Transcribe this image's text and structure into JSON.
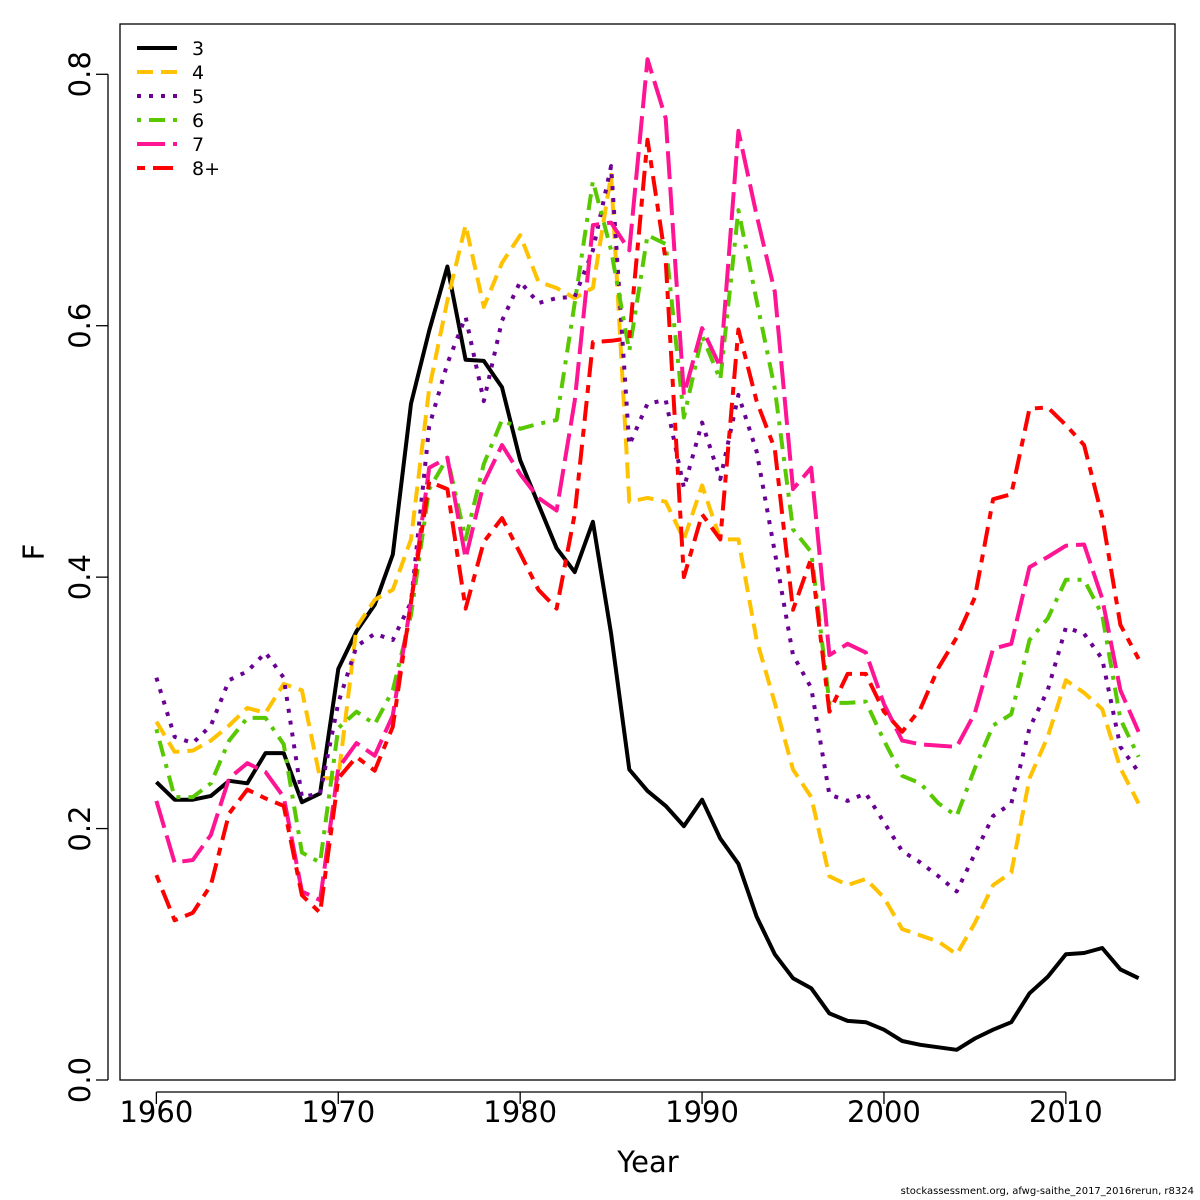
{
  "chart_data": {
    "type": "line",
    "xlabel": "Year",
    "ylabel": "F",
    "xlim": [
      1958,
      2016
    ],
    "ylim": [
      0,
      0.84
    ],
    "xticks": [
      1960,
      1970,
      1980,
      1990,
      2000,
      2010
    ],
    "yticks": [
      "0.0",
      "0.2",
      "0.4",
      "0.6",
      "0.8"
    ],
    "legend_position": "top-left",
    "x": [
      1960,
      1961,
      1962,
      1963,
      1964,
      1965,
      1966,
      1967,
      1968,
      1969,
      1970,
      1971,
      1972,
      1973,
      1974,
      1975,
      1976,
      1977,
      1978,
      1979,
      1980,
      1981,
      1982,
      1983,
      1984,
      1985,
      1986,
      1987,
      1988,
      1989,
      1990,
      1991,
      1992,
      1993,
      1994,
      1995,
      1996,
      1997,
      1998,
      1999,
      2000,
      2001,
      2002,
      2003,
      2004,
      2005,
      2006,
      2007,
      2008,
      2009,
      2010,
      2011,
      2012,
      2013,
      2014
    ],
    "series": [
      {
        "name": "3",
        "color": "#000000",
        "dash": "solid",
        "width": 4,
        "values": [
          0.237,
          0.223,
          0.223,
          0.226,
          0.238,
          0.236,
          0.26,
          0.26,
          0.221,
          0.228,
          0.327,
          0.357,
          0.378,
          0.418,
          0.538,
          0.596,
          0.647,
          0.573,
          0.572,
          0.551,
          0.493,
          0.458,
          0.423,
          0.404,
          0.444,
          0.355,
          0.247,
          0.23,
          0.218,
          0.202,
          0.223,
          0.192,
          0.172,
          0.13,
          0.1,
          0.081,
          0.073,
          0.053,
          0.047,
          0.046,
          0.04,
          0.031,
          0.028,
          0.026,
          0.024,
          0.033,
          0.04,
          0.046,
          0.069,
          0.082,
          0.1,
          0.101,
          0.105,
          0.088,
          0.081
        ]
      },
      {
        "name": "4",
        "color": "#ffc200",
        "dash": "dash",
        "width": 4,
        "values": [
          0.285,
          0.261,
          0.262,
          0.27,
          0.282,
          0.296,
          0.292,
          0.315,
          0.31,
          0.24,
          0.24,
          0.36,
          0.382,
          0.39,
          0.43,
          0.55,
          0.62,
          0.68,
          0.615,
          0.65,
          0.672,
          0.635,
          0.63,
          0.622,
          0.63,
          0.72,
          0.46,
          0.463,
          0.46,
          0.43,
          0.473,
          0.43,
          0.43,
          0.35,
          0.3,
          0.247,
          0.225,
          0.162,
          0.155,
          0.16,
          0.145,
          0.12,
          0.115,
          0.11,
          0.1,
          0.125,
          0.155,
          0.165,
          0.24,
          0.273,
          0.318,
          0.308,
          0.295,
          0.248,
          0.22
        ]
      },
      {
        "name": "5",
        "color": "#6a0094",
        "dash": "dot",
        "width": 4,
        "values": [
          0.32,
          0.273,
          0.268,
          0.282,
          0.318,
          0.325,
          0.34,
          0.32,
          0.225,
          0.228,
          0.3,
          0.345,
          0.355,
          0.35,
          0.38,
          0.52,
          0.57,
          0.607,
          0.54,
          0.604,
          0.635,
          0.618,
          0.622,
          0.623,
          0.66,
          0.727,
          0.505,
          0.538,
          0.541,
          0.471,
          0.523,
          0.478,
          0.545,
          0.5,
          0.42,
          0.338,
          0.312,
          0.227,
          0.222,
          0.228,
          0.205,
          0.182,
          0.173,
          0.162,
          0.15,
          0.18,
          0.21,
          0.22,
          0.28,
          0.31,
          0.36,
          0.355,
          0.335,
          0.265,
          0.245
        ]
      },
      {
        "name": "6",
        "color": "#58c800",
        "dash": "dashdot",
        "width": 4,
        "values": [
          0.279,
          0.225,
          0.225,
          0.236,
          0.27,
          0.288,
          0.288,
          0.267,
          0.181,
          0.173,
          0.28,
          0.293,
          0.283,
          0.31,
          0.37,
          0.47,
          0.495,
          0.43,
          0.49,
          0.525,
          0.518,
          0.522,
          0.525,
          0.618,
          0.715,
          0.66,
          0.58,
          0.672,
          0.665,
          0.527,
          0.592,
          0.557,
          0.692,
          0.62,
          0.55,
          0.438,
          0.42,
          0.3,
          0.3,
          0.301,
          0.27,
          0.242,
          0.236,
          0.22,
          0.21,
          0.248,
          0.282,
          0.291,
          0.35,
          0.367,
          0.398,
          0.398,
          0.37,
          0.287,
          0.257
        ]
      },
      {
        "name": "7",
        "color": "#ff1493",
        "dash": "longdash",
        "width": 4,
        "values": [
          0.222,
          0.173,
          0.175,
          0.195,
          0.24,
          0.252,
          0.245,
          0.225,
          0.15,
          0.143,
          0.248,
          0.268,
          0.258,
          0.29,
          0.38,
          0.487,
          0.495,
          0.415,
          0.475,
          0.505,
          0.482,
          0.463,
          0.453,
          0.54,
          0.68,
          0.682,
          0.66,
          0.812,
          0.765,
          0.545,
          0.598,
          0.567,
          0.755,
          0.688,
          0.627,
          0.47,
          0.487,
          0.338,
          0.347,
          0.34,
          0.299,
          0.27,
          0.267,
          0.266,
          0.265,
          0.292,
          0.343,
          0.347,
          0.408,
          0.416,
          0.425,
          0.426,
          0.383,
          0.31,
          0.277
        ]
      },
      {
        "name": "8+",
        "color": "#ff0000",
        "dash": "twodash",
        "width": 4,
        "values": [
          0.163,
          0.127,
          0.133,
          0.155,
          0.212,
          0.231,
          0.224,
          0.218,
          0.147,
          0.133,
          0.24,
          0.257,
          0.246,
          0.281,
          0.38,
          0.476,
          0.47,
          0.375,
          0.428,
          0.447,
          0.419,
          0.39,
          0.375,
          0.45,
          0.587,
          0.588,
          0.59,
          0.748,
          0.652,
          0.4,
          0.45,
          0.43,
          0.597,
          0.54,
          0.502,
          0.374,
          0.415,
          0.293,
          0.323,
          0.323,
          0.293,
          0.277,
          0.295,
          0.328,
          0.352,
          0.384,
          0.462,
          0.466,
          0.534,
          0.535,
          0.521,
          0.505,
          0.448,
          0.362,
          0.335
        ]
      }
    ]
  },
  "footer": {
    "credit": "stockassessment.org, afwg-saithe_2017_2016rerun, r8324"
  }
}
